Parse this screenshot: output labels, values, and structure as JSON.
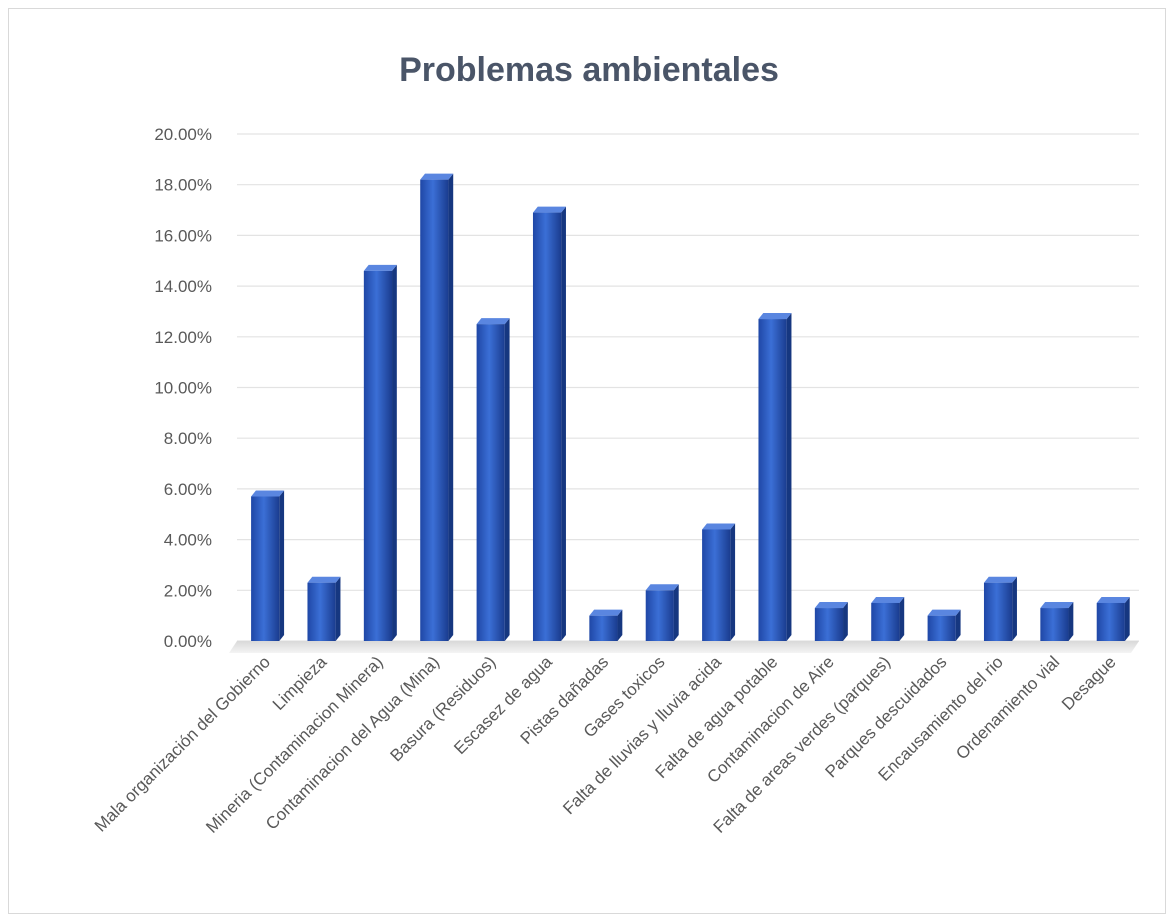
{
  "chart_data": {
    "type": "bar",
    "title": "Problemas ambientales",
    "xlabel": "",
    "ylabel": "",
    "ylim": [
      0,
      20
    ],
    "yticks": [
      "0.00%",
      "2.00%",
      "4.00%",
      "6.00%",
      "8.00%",
      "10.00%",
      "12.00%",
      "14.00%",
      "16.00%",
      "18.00%",
      "20.00%"
    ],
    "grid": true,
    "legend": "none",
    "bar_color": "#2f5fc4",
    "categories": [
      "Mala organización del Gobierno",
      "Limpieza",
      "Mineria (Contaminacion Minera)",
      "Contaminacion del Agua (Mina)",
      "Basura (Residuos)",
      "Escasez de agua",
      "Pistas dañadas",
      "Gases toxicos",
      "Falta de lluvias y lluvia acida",
      "Falta de agua potable",
      "Contaminacion de Aire",
      "Falta de areas verdes (parques)",
      "Parques descuidados",
      "Encausamiento del rio",
      "Ordenamiento vial",
      "Desague"
    ],
    "values": [
      5.7,
      2.3,
      14.6,
      18.2,
      12.5,
      16.9,
      1.0,
      2.0,
      4.4,
      12.7,
      1.3,
      1.5,
      1.0,
      2.3,
      1.3,
      1.5
    ]
  }
}
